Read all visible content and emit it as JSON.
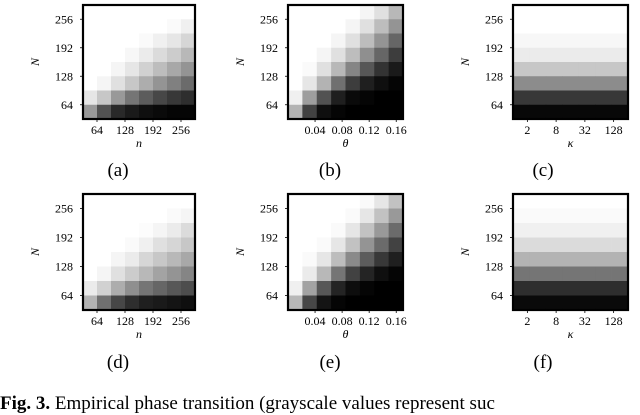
{
  "figure": {
    "caption_label": "Fig. 3.",
    "caption_text": "Empirical phase transition (grayscale values represent suc"
  },
  "chart_data": [
    {
      "type": "heatmap",
      "panel_label": "(a)",
      "xlabel": "n",
      "ylabel": "N",
      "xticks": [
        "64",
        "128",
        "192",
        "256"
      ],
      "yticks": [
        "64",
        "128",
        "192",
        "256"
      ],
      "xtick_values": [
        64,
        128,
        192,
        256
      ],
      "ytick_values": [
        64,
        128,
        192,
        256
      ],
      "xlim": [
        32,
        288
      ],
      "ylim": [
        32,
        288
      ],
      "rows": 8,
      "cols": 8,
      "values": [
        [
          1.0,
          1.0,
          1.0,
          1.0,
          1.0,
          1.0,
          1.0,
          1.0
        ],
        [
          1.0,
          1.0,
          1.0,
          1.0,
          1.0,
          1.0,
          0.98,
          0.94
        ],
        [
          1.0,
          1.0,
          1.0,
          1.0,
          0.98,
          0.94,
          0.9,
          0.84
        ],
        [
          1.0,
          1.0,
          1.0,
          0.97,
          0.92,
          0.86,
          0.8,
          0.72
        ],
        [
          1.0,
          1.0,
          0.96,
          0.9,
          0.82,
          0.74,
          0.66,
          0.58
        ],
        [
          1.0,
          0.96,
          0.88,
          0.78,
          0.68,
          0.58,
          0.5,
          0.42
        ],
        [
          0.9,
          0.78,
          0.6,
          0.46,
          0.36,
          0.28,
          0.22,
          0.18
        ],
        [
          0.6,
          0.32,
          0.16,
          0.1,
          0.06,
          0.04,
          0.02,
          0.02
        ]
      ]
    },
    {
      "type": "heatmap",
      "panel_label": "(b)",
      "xlabel": "θ",
      "ylabel": "N",
      "xticks": [
        "0.04",
        "0.08",
        "0.12",
        "0.16"
      ],
      "yticks": [
        "64",
        "128",
        "192",
        "256"
      ],
      "xtick_values": [
        0.04,
        0.08,
        0.12,
        0.16
      ],
      "ytick_values": [
        64,
        128,
        192,
        256
      ],
      "xlim": [
        0.0,
        0.17
      ],
      "ylim": [
        32,
        288
      ],
      "rows": 8,
      "cols": 8,
      "values": [
        [
          1.0,
          1.0,
          1.0,
          1.0,
          1.0,
          0.96,
          0.88,
          0.72
        ],
        [
          1.0,
          1.0,
          1.0,
          1.0,
          0.96,
          0.88,
          0.74,
          0.58
        ],
        [
          1.0,
          1.0,
          1.0,
          0.96,
          0.88,
          0.74,
          0.58,
          0.4
        ],
        [
          1.0,
          1.0,
          0.96,
          0.88,
          0.74,
          0.56,
          0.4,
          0.24
        ],
        [
          1.0,
          0.98,
          0.88,
          0.72,
          0.52,
          0.34,
          0.2,
          0.1
        ],
        [
          1.0,
          0.9,
          0.7,
          0.44,
          0.24,
          0.12,
          0.06,
          0.02
        ],
        [
          0.94,
          0.62,
          0.32,
          0.12,
          0.04,
          0.02,
          0.0,
          0.0
        ],
        [
          0.7,
          0.26,
          0.06,
          0.02,
          0.0,
          0.0,
          0.0,
          0.0
        ]
      ]
    },
    {
      "type": "heatmap",
      "panel_label": "(c)",
      "xlabel": "κ",
      "ylabel": "N",
      "xticks": [
        "2",
        "8",
        "32",
        "128"
      ],
      "yticks": [
        "64",
        "128",
        "192",
        "256"
      ],
      "xtick_values": [
        2,
        8,
        32,
        128
      ],
      "ytick_values": [
        64,
        128,
        192,
        256
      ],
      "xscale": "log",
      "xlim": [
        1,
        256
      ],
      "ylim": [
        32,
        288
      ],
      "rows": 8,
      "cols": 7,
      "values": [
        [
          1.0,
          1.0,
          1.0,
          1.0,
          1.0,
          1.0,
          1.0
        ],
        [
          1.0,
          1.0,
          1.0,
          1.0,
          1.0,
          1.0,
          1.0
        ],
        [
          0.97,
          0.97,
          0.97,
          0.97,
          0.97,
          0.97,
          0.97
        ],
        [
          0.92,
          0.92,
          0.92,
          0.92,
          0.92,
          0.92,
          0.92
        ],
        [
          0.78,
          0.78,
          0.78,
          0.78,
          0.78,
          0.78,
          0.78
        ],
        [
          0.55,
          0.55,
          0.55,
          0.55,
          0.55,
          0.55,
          0.55
        ],
        [
          0.22,
          0.22,
          0.22,
          0.22,
          0.22,
          0.22,
          0.22
        ],
        [
          0.03,
          0.03,
          0.03,
          0.03,
          0.03,
          0.03,
          0.03
        ]
      ]
    },
    {
      "type": "heatmap",
      "panel_label": "(d)",
      "xlabel": "n",
      "ylabel": "N",
      "xticks": [
        "64",
        "128",
        "192",
        "256"
      ],
      "yticks": [
        "64",
        "128",
        "192",
        "256"
      ],
      "xtick_values": [
        64,
        128,
        192,
        256
      ],
      "ytick_values": [
        64,
        128,
        192,
        256
      ],
      "xlim": [
        32,
        288
      ],
      "ylim": [
        32,
        288
      ],
      "rows": 8,
      "cols": 8,
      "values": [
        [
          1.0,
          1.0,
          1.0,
          1.0,
          1.0,
          1.0,
          1.0,
          1.0
        ],
        [
          1.0,
          1.0,
          1.0,
          1.0,
          1.0,
          1.0,
          0.98,
          0.96
        ],
        [
          1.0,
          1.0,
          1.0,
          1.0,
          0.99,
          0.96,
          0.92,
          0.86
        ],
        [
          1.0,
          1.0,
          1.0,
          0.98,
          0.94,
          0.88,
          0.84,
          0.78
        ],
        [
          1.0,
          1.0,
          0.96,
          0.92,
          0.84,
          0.78,
          0.72,
          0.66
        ],
        [
          1.0,
          0.96,
          0.88,
          0.8,
          0.72,
          0.64,
          0.58,
          0.52
        ],
        [
          0.92,
          0.82,
          0.68,
          0.56,
          0.46,
          0.4,
          0.34,
          0.3
        ],
        [
          0.7,
          0.44,
          0.28,
          0.18,
          0.12,
          0.1,
          0.08,
          0.06
        ]
      ]
    },
    {
      "type": "heatmap",
      "panel_label": "(e)",
      "xlabel": "θ",
      "ylabel": "N",
      "xticks": [
        "0.04",
        "0.08",
        "0.12",
        "0.16"
      ],
      "yticks": [
        "64",
        "128",
        "192",
        "256"
      ],
      "xtick_values": [
        0.04,
        0.08,
        0.12,
        0.16
      ],
      "ytick_values": [
        64,
        128,
        192,
        256
      ],
      "xlim": [
        0.0,
        0.17
      ],
      "ylim": [
        32,
        288
      ],
      "rows": 8,
      "cols": 8,
      "values": [
        [
          1.0,
          1.0,
          1.0,
          1.0,
          1.0,
          0.98,
          0.9,
          0.76
        ],
        [
          1.0,
          1.0,
          1.0,
          1.0,
          0.98,
          0.9,
          0.76,
          0.6
        ],
        [
          1.0,
          1.0,
          1.0,
          0.98,
          0.9,
          0.76,
          0.6,
          0.42
        ],
        [
          1.0,
          1.0,
          0.98,
          0.9,
          0.76,
          0.58,
          0.42,
          0.26
        ],
        [
          1.0,
          0.98,
          0.9,
          0.74,
          0.54,
          0.36,
          0.22,
          0.12
        ],
        [
          1.0,
          0.92,
          0.72,
          0.46,
          0.26,
          0.14,
          0.06,
          0.02
        ],
        [
          0.94,
          0.64,
          0.34,
          0.14,
          0.05,
          0.02,
          0.0,
          0.0
        ],
        [
          0.72,
          0.28,
          0.08,
          0.02,
          0.0,
          0.0,
          0.0,
          0.0
        ]
      ]
    },
    {
      "type": "heatmap",
      "panel_label": "(f)",
      "xlabel": "κ",
      "ylabel": "N",
      "xticks": [
        "2",
        "8",
        "32",
        "128"
      ],
      "yticks": [
        "64",
        "128",
        "192",
        "256"
      ],
      "xtick_values": [
        2,
        8,
        32,
        128
      ],
      "ytick_values": [
        64,
        128,
        192,
        256
      ],
      "xscale": "log",
      "xlim": [
        1,
        256
      ],
      "ylim": [
        32,
        288
      ],
      "rows": 8,
      "cols": 7,
      "values": [
        [
          1.0,
          1.0,
          1.0,
          1.0,
          1.0,
          1.0,
          1.0
        ],
        [
          0.98,
          0.98,
          0.98,
          0.98,
          0.98,
          0.98,
          0.98
        ],
        [
          0.94,
          0.94,
          0.94,
          0.94,
          0.94,
          0.94,
          0.94
        ],
        [
          0.86,
          0.86,
          0.86,
          0.86,
          0.86,
          0.86,
          0.86
        ],
        [
          0.7,
          0.7,
          0.7,
          0.7,
          0.7,
          0.7,
          0.7
        ],
        [
          0.46,
          0.46,
          0.46,
          0.46,
          0.46,
          0.46,
          0.46
        ],
        [
          0.18,
          0.18,
          0.18,
          0.18,
          0.18,
          0.18,
          0.18
        ],
        [
          0.04,
          0.04,
          0.04,
          0.04,
          0.04,
          0.04,
          0.04
        ]
      ]
    }
  ]
}
